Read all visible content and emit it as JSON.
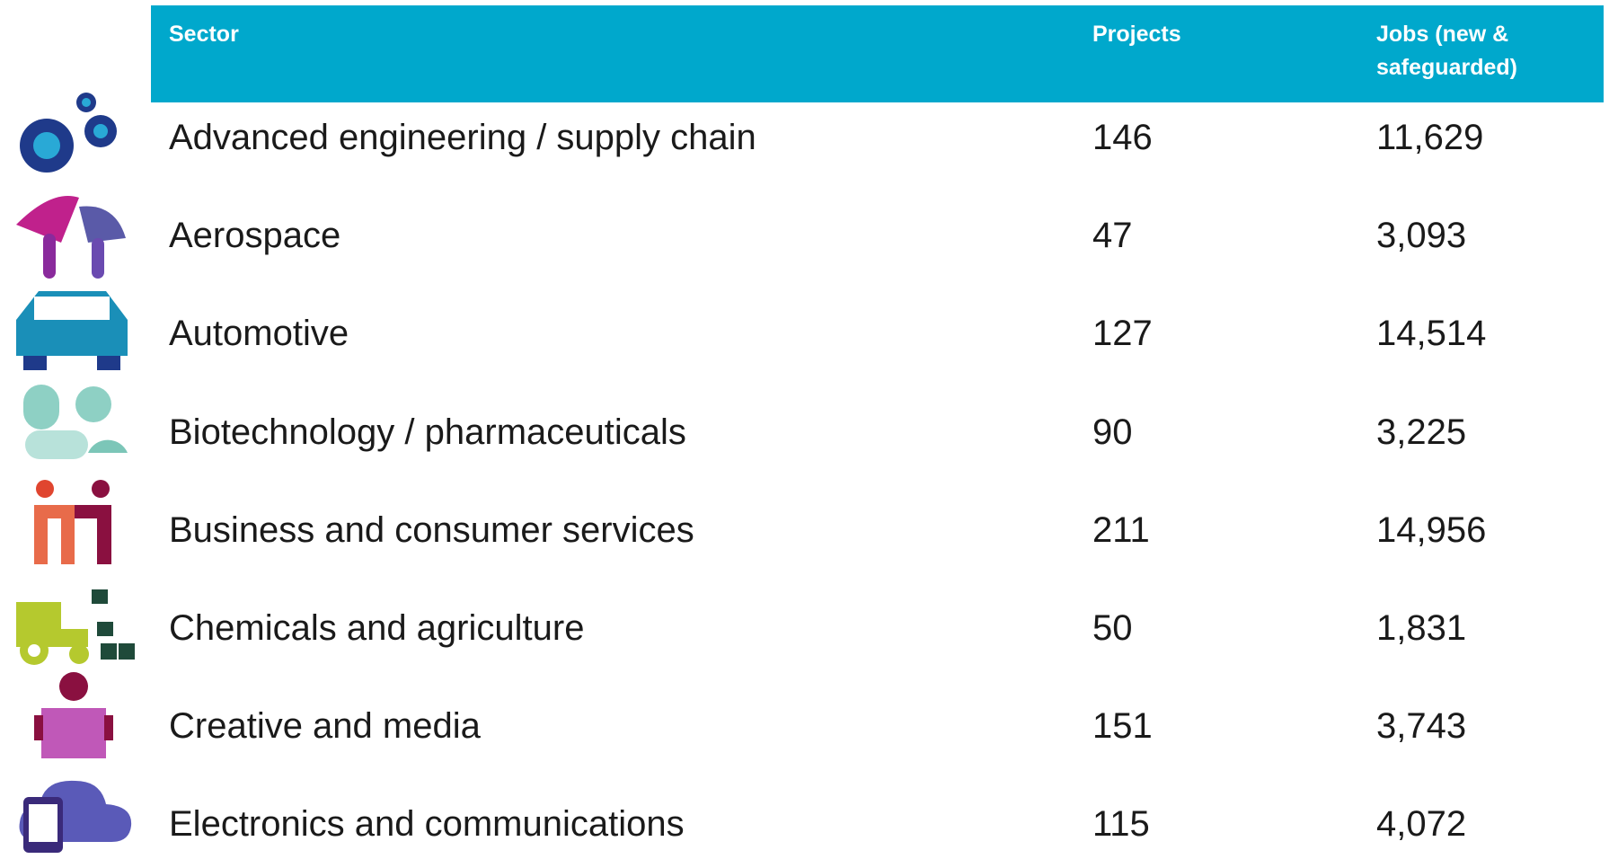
{
  "table": {
    "header": [
      "Sector",
      "Projects",
      "Jobs (new & safeguarded)"
    ],
    "rows": [
      [
        "Advanced engineering / supply chain",
        "146",
        "11,629"
      ],
      [
        "Aerospace",
        "47",
        "3,093"
      ],
      [
        "Automotive",
        "127",
        "14,514"
      ],
      [
        "Biotechnology / pharmaceuticals",
        "90",
        "3,225"
      ],
      [
        "Business and consumer services",
        "211",
        "14,956"
      ],
      [
        "Chemicals and agriculture",
        "50",
        "1,831"
      ],
      [
        "Creative and media",
        "151",
        "3,743"
      ],
      [
        "Electronics and communications",
        "115",
        "4,072"
      ]
    ]
  }
}
